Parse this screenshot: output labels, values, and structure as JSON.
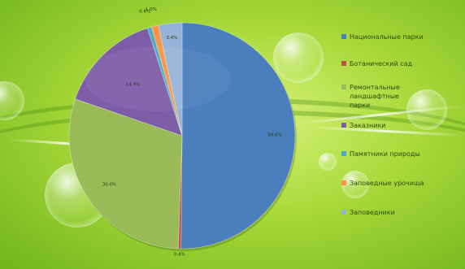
{
  "chart_data": {
    "type": "pie",
    "categories": [
      "Национальные парки",
      "Ботанический сад",
      "Ремонтальные ландшафтные парки",
      "Заказники",
      "Памятники природы",
      "Заповедные урочища",
      "Заповедники"
    ],
    "values": [
      50.6,
      0.4,
      30.0,
      14.9,
      0.6,
      1.0,
      3.4
    ],
    "data_labels": [
      "50.6%",
      "0.4%",
      "30.0%",
      "14.9%",
      "0.6%",
      "1.0%",
      "3.4%"
    ],
    "colors": [
      "#4a7ebd",
      "#c0504d",
      "#9bbb59",
      "#7e5da8",
      "#4bacc6",
      "#f79646",
      "#95b3d7"
    ],
    "legend_position": "right"
  }
}
